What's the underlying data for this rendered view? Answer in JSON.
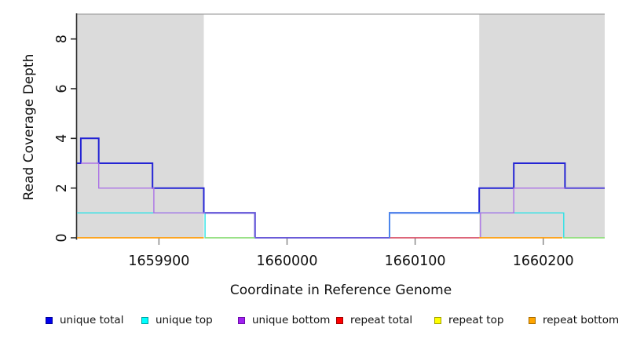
{
  "chart_data": {
    "type": "line",
    "subtype": "step-coverage",
    "title": "",
    "xlabel": "Coordinate in Reference Genome",
    "ylabel": "Read Coverage Depth",
    "xlim": [
      1659836,
      1660248
    ],
    "ylim": [
      0,
      9
    ],
    "grid": false,
    "legend_position": "bottom",
    "xticks": [
      {
        "value": 1659900,
        "label": "1659900"
      },
      {
        "value": 1660000,
        "label": "1660000"
      },
      {
        "value": 1660100,
        "label": "1660100"
      },
      {
        "value": 1660200,
        "label": "1660200"
      }
    ],
    "yticks": [
      {
        "value": 0,
        "label": "0"
      },
      {
        "value": 2,
        "label": "2"
      },
      {
        "value": 4,
        "label": "4"
      },
      {
        "value": 6,
        "label": "6"
      },
      {
        "value": 8,
        "label": "8"
      }
    ],
    "shaded_repeat_regions": [
      {
        "x0": 1659836,
        "x1": 1659935,
        "fill": "#DBDBDB"
      },
      {
        "x0": 1660150,
        "x1": 1660248,
        "fill": "#DBDBDB"
      }
    ],
    "series": [
      {
        "name": "unique total",
        "color": "#2424D4",
        "width": 2,
        "steps": [
          [
            1659836,
            3
          ],
          [
            1659839,
            4
          ],
          [
            1659853,
            3
          ],
          [
            1659895,
            2
          ],
          [
            1659935,
            1
          ],
          [
            1659975,
            0
          ],
          [
            1660080,
            1
          ],
          [
            1660150,
            2
          ],
          [
            1660177,
            3
          ],
          [
            1660217,
            2
          ],
          [
            1660248,
            2
          ]
        ]
      },
      {
        "name": "unique top",
        "color": "#2BE2E6",
        "width": 1.4,
        "steps": [
          [
            1659836,
            1
          ],
          [
            1659936,
            0
          ],
          [
            1660080,
            1
          ],
          [
            1660216,
            0
          ],
          [
            1660248,
            0
          ]
        ]
      },
      {
        "name": "unique bottom",
        "color": "#AB72E6",
        "width": 1.4,
        "steps": [
          [
            1659839,
            3
          ],
          [
            1659853,
            2
          ],
          [
            1659896,
            1
          ],
          [
            1659975,
            0
          ],
          [
            1660151,
            1
          ],
          [
            1660177,
            2
          ],
          [
            1660248,
            2
          ]
        ]
      },
      {
        "name": "repeat total",
        "color": "#E04A52",
        "width": 1.4,
        "steps": [
          [
            1660080,
            0
          ],
          [
            1660150,
            0
          ]
        ]
      },
      {
        "name": "repeat top",
        "color": "#F2F20A",
        "width": 1.4,
        "steps": [
          [
            1659936,
            0
          ],
          [
            1659975,
            0
          ]
        ]
      },
      {
        "name": "repeat bottom",
        "color": "#FF9C08",
        "width": 1.8,
        "steps": [
          [
            1659836,
            0
          ],
          [
            1659935,
            0
          ]
        ]
      }
    ],
    "extra_segments": [
      {
        "name": "repeat top (right block)",
        "color": "#F2F20A",
        "width": 1.4,
        "points": [
          [
            1660216,
            0
          ],
          [
            1660248,
            0
          ]
        ]
      },
      {
        "name": "repeat bottom (right block)",
        "color": "#FF9C08",
        "width": 1.8,
        "points": [
          [
            1660150,
            0
          ],
          [
            1660215,
            0
          ]
        ]
      }
    ],
    "overlap_blends": [
      {
        "name": "unique total + unique bottom",
        "color": "#6A5BD8",
        "width": 2,
        "points": [
          [
            1659936,
            1
          ],
          [
            1659975,
            1
          ],
          [
            1659975,
            0
          ],
          [
            1660080,
            0
          ]
        ]
      },
      {
        "name": "unique total + unique top",
        "color": "#4C86EC",
        "width": 2,
        "points": [
          [
            1660080,
            0
          ],
          [
            1660080,
            1
          ],
          [
            1660150,
            1
          ]
        ]
      },
      {
        "name": "unique total + unique bottom (right)",
        "color": "#6A5BD8",
        "width": 2,
        "points": [
          [
            1660217,
            2
          ],
          [
            1660248,
            2
          ]
        ]
      },
      {
        "name": "unique top + repeat top",
        "color": "#8CDC8C",
        "width": 1.4,
        "points": [
          [
            1659936,
            0
          ],
          [
            1659975,
            0
          ]
        ]
      },
      {
        "name": "unique top + repeat top (right)",
        "color": "#8CDC8C",
        "width": 1.4,
        "points": [
          [
            1660216,
            0
          ],
          [
            1660248,
            0
          ]
        ]
      }
    ]
  },
  "legend": {
    "items": [
      {
        "label": "unique total",
        "fill": "#0000EE",
        "border": "#000095"
      },
      {
        "label": "unique top",
        "fill": "#00FFFF",
        "border": "#00A0A0"
      },
      {
        "label": "unique bottom",
        "fill": "#A020F0",
        "border": "#6C0BA9"
      },
      {
        "label": "repeat total",
        "fill": "#FF0000",
        "border": "#A00000"
      },
      {
        "label": "repeat top",
        "fill": "#FFFF00",
        "border": "#A0A000"
      },
      {
        "label": "repeat bottom",
        "fill": "#FFA500",
        "border": "#A56A00"
      }
    ]
  }
}
